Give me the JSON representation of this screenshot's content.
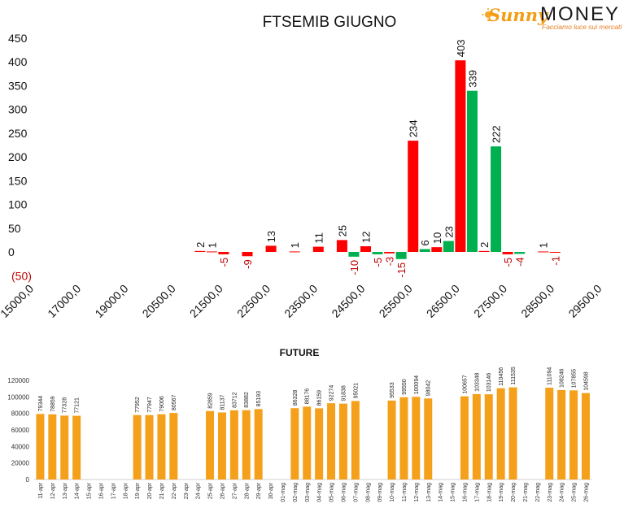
{
  "logo": {
    "brand_a": "Sunny",
    "brand_b": "MONEY",
    "tagline": "Facciamo luce sui mercati"
  },
  "chart_data": [
    {
      "type": "bar",
      "title": "FTSEMIB GIUGNO",
      "yticks": [
        "450",
        "400",
        "350",
        "300",
        "250",
        "200",
        "150",
        "100",
        "50",
        "0",
        "(50)"
      ],
      "ylim": [
        -50,
        450
      ],
      "xtick_labels": [
        "15000,0",
        "17000,0",
        "19000,0",
        "20500,0",
        "21500,0",
        "22500,0",
        "23500,0",
        "24500,0",
        "25500,0",
        "26500,0",
        "27500,0",
        "28500,0",
        "29500,0"
      ],
      "colors": {
        "red": "#ff0000",
        "green": "#00b050",
        "neg_label": "#c00000"
      },
      "bars": [
        {
          "slot": 8.0,
          "value": 2,
          "color": "red"
        },
        {
          "slot": 8.5,
          "value": 1,
          "color": "red"
        },
        {
          "slot": 9.0,
          "value": -5,
          "color": "red"
        },
        {
          "slot": 10.0,
          "value": -9,
          "color": "red"
        },
        {
          "slot": 11.0,
          "value": 13,
          "color": "red"
        },
        {
          "slot": 12.0,
          "value": 1,
          "color": "red"
        },
        {
          "slot": 13.0,
          "value": 11,
          "color": "red"
        },
        {
          "slot": 14.0,
          "value": 25,
          "color": "red"
        },
        {
          "slot": 14.5,
          "value": -10,
          "color": "green"
        },
        {
          "slot": 15.0,
          "value": 12,
          "color": "red"
        },
        {
          "slot": 15.5,
          "value": -5,
          "color": "green"
        },
        {
          "slot": 16.0,
          "value": -3,
          "color": "red"
        },
        {
          "slot": 16.5,
          "value": -15,
          "color": "green"
        },
        {
          "slot": 17.0,
          "value": 234,
          "color": "red"
        },
        {
          "slot": 17.5,
          "value": 6,
          "color": "green"
        },
        {
          "slot": 18.0,
          "value": 10,
          "color": "red"
        },
        {
          "slot": 18.5,
          "value": 23,
          "color": "green"
        },
        {
          "slot": 19.0,
          "value": 403,
          "color": "red"
        },
        {
          "slot": 19.5,
          "value": 339,
          "color": "green"
        },
        {
          "slot": 20.0,
          "value": 2,
          "color": "red"
        },
        {
          "slot": 20.5,
          "value": 222,
          "color": "green"
        },
        {
          "slot": 21.0,
          "value": -5,
          "color": "red"
        },
        {
          "slot": 21.5,
          "value": -4,
          "color": "green"
        },
        {
          "slot": 22.5,
          "value": 1,
          "color": "red"
        },
        {
          "slot": 23.0,
          "value": -1,
          "color": "red"
        }
      ]
    },
    {
      "type": "bar",
      "title": "FUTURE",
      "color": "#f5a01a",
      "yticks": [
        0,
        20000,
        40000,
        60000,
        80000,
        100000,
        120000
      ],
      "ylim": [
        0,
        120000
      ],
      "categories": [
        "11-apr",
        "12-apr",
        "13-apr",
        "14-apr",
        "15-apr",
        "16-apr",
        "17-apr",
        "18-apr",
        "19-apr",
        "20-apr",
        "21-apr",
        "22-apr",
        "23-apr",
        "24-apr",
        "25-apr",
        "26-apr",
        "27-apr",
        "28-apr",
        "29-apr",
        "30-apr",
        "01-mag",
        "02-mag",
        "03-mag",
        "04-mag",
        "05-mag",
        "06-mag",
        "07-mag",
        "08-mag",
        "09-mag",
        "10-mag",
        "11-mag",
        "12-mag",
        "13-mag",
        "14-mag",
        "15-mag",
        "16-mag",
        "17-mag",
        "18-mag",
        "19-mag",
        "20-mag",
        "21-mag",
        "22-mag",
        "23-mag",
        "24-mag",
        "25-mag",
        "26-mag"
      ],
      "values": [
        79344,
        78859,
        77328,
        77121,
        null,
        null,
        null,
        null,
        77952,
        77947,
        79006,
        80567,
        null,
        null,
        82859,
        81137,
        83712,
        83882,
        85193,
        null,
        null,
        86328,
        88176,
        86159,
        92274,
        91838,
        95021,
        null,
        null,
        95533,
        99550,
        100094,
        98042,
        null,
        null,
        100657,
        103348,
        103146,
        110456,
        111535,
        null,
        null,
        111094,
        108246,
        107855,
        104598
      ]
    }
  ]
}
